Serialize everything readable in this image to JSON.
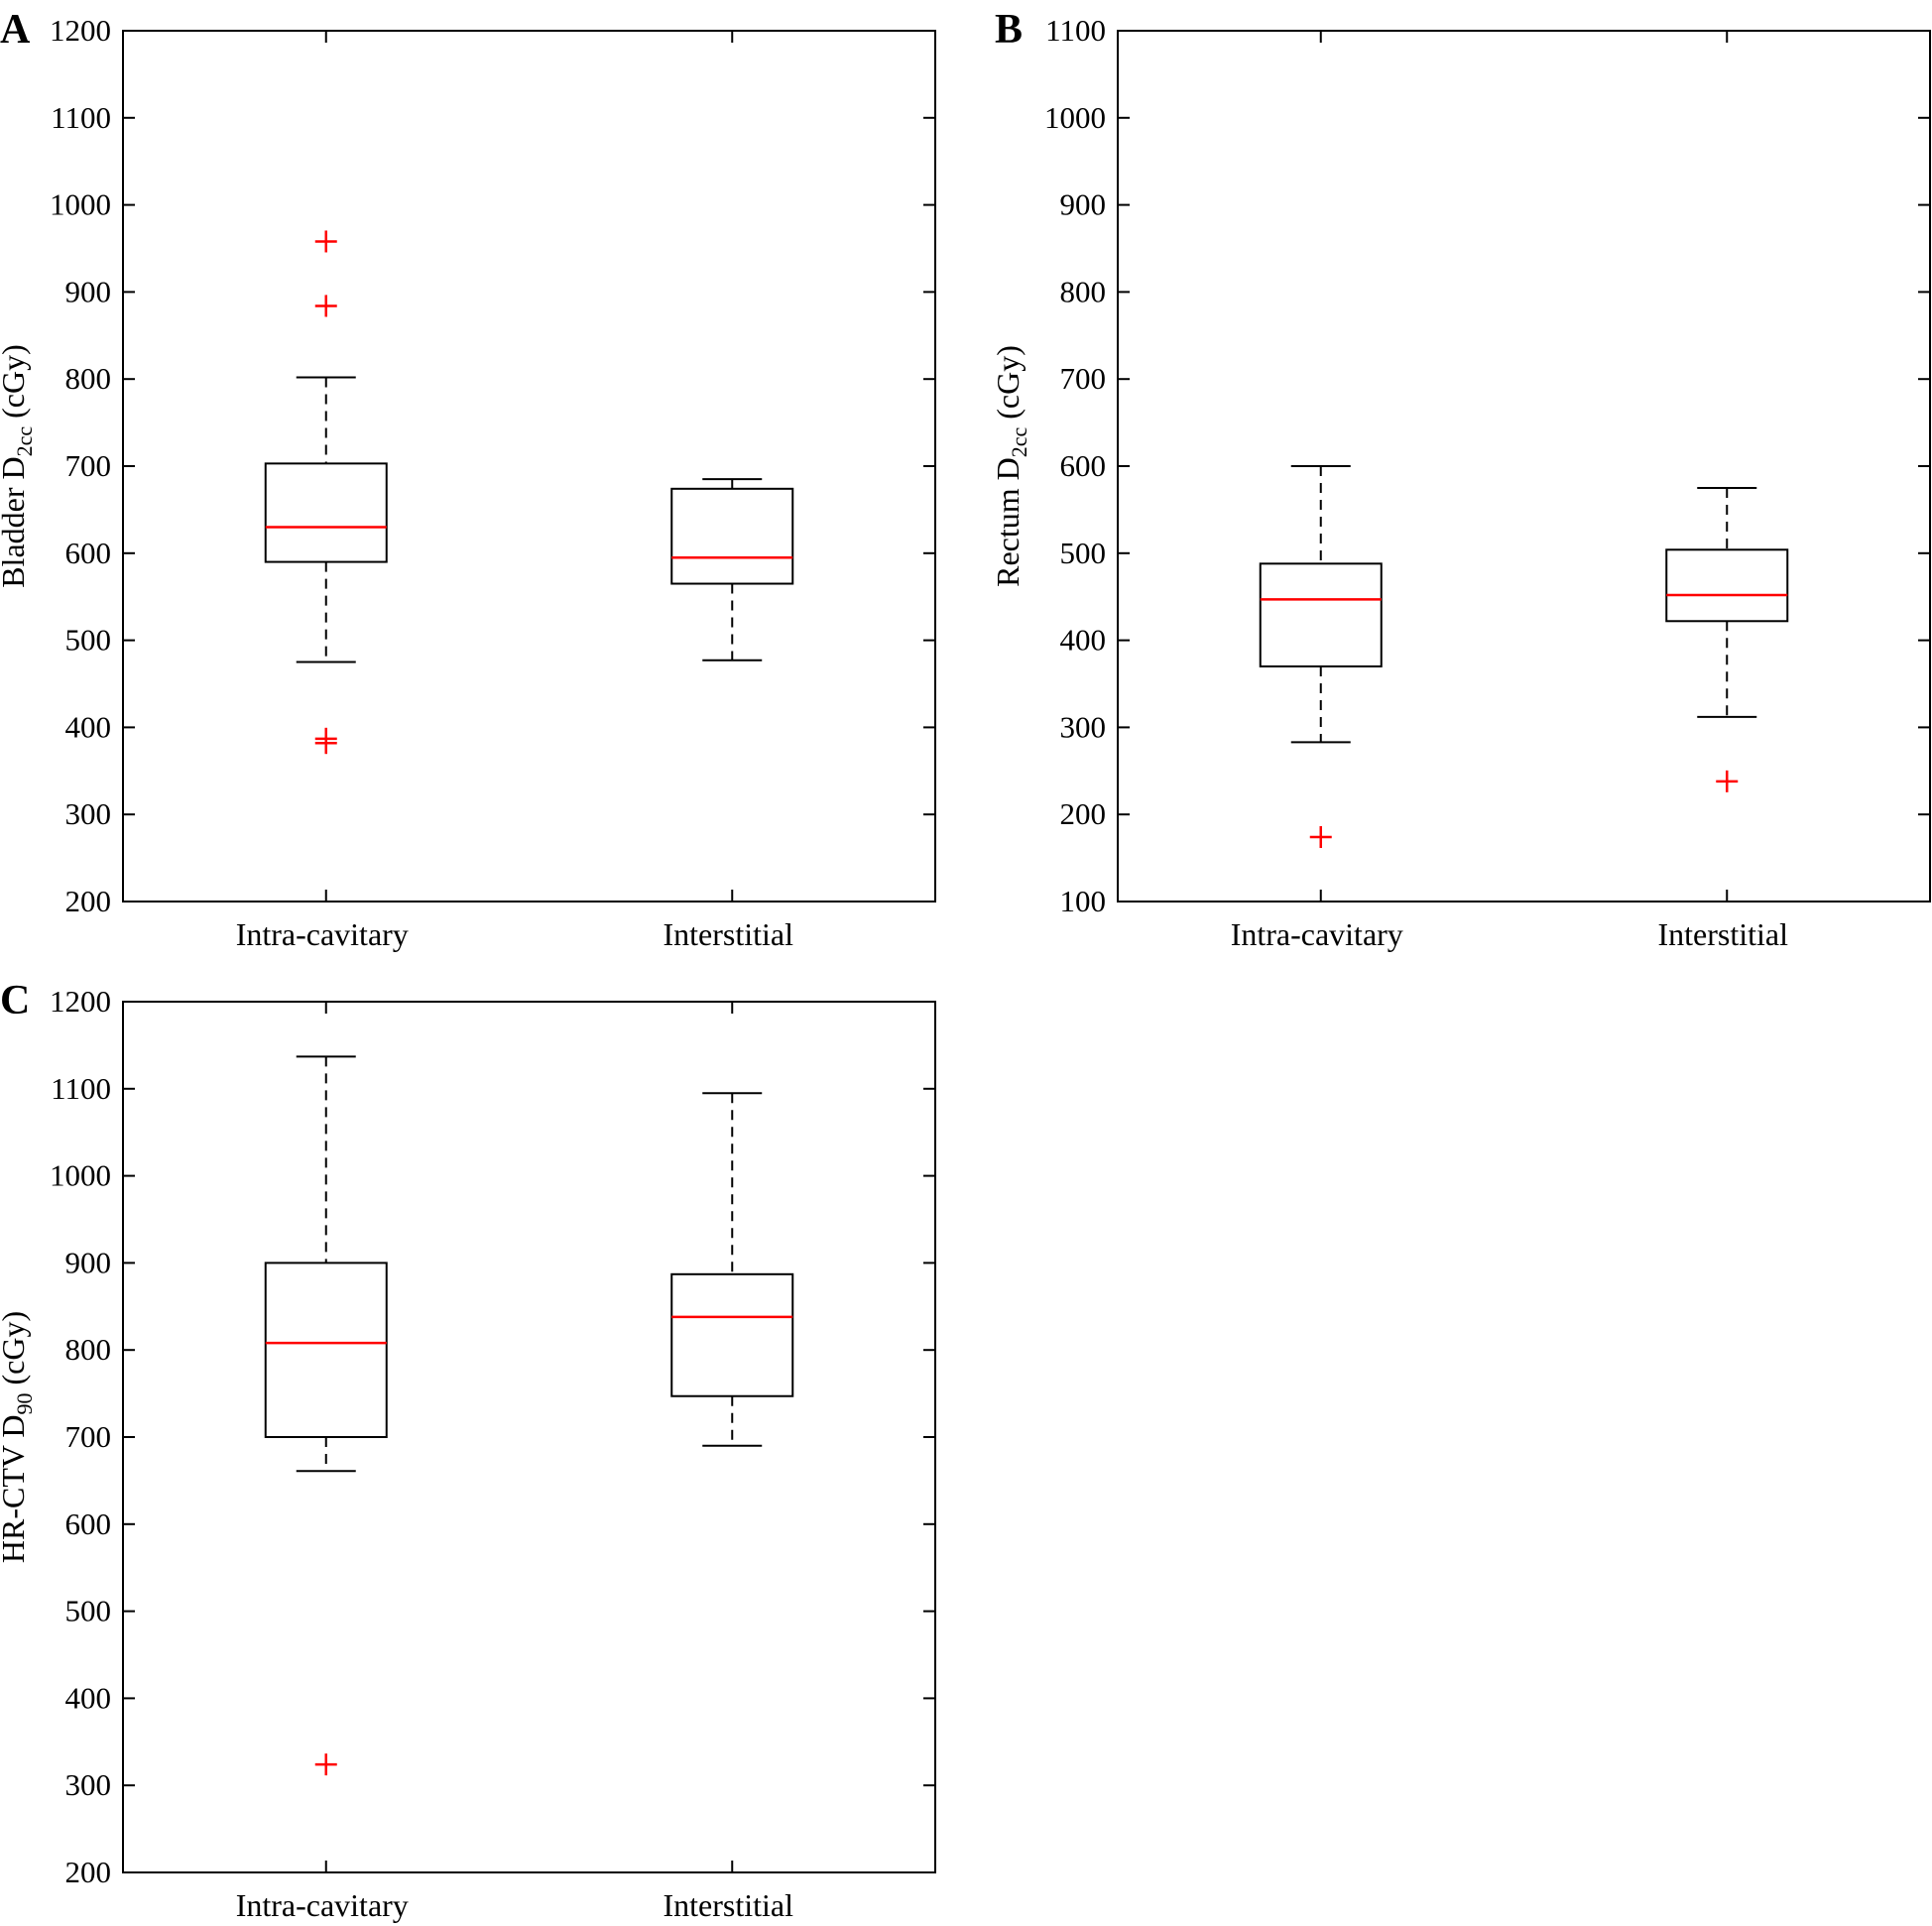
{
  "chart_data": [
    {
      "type": "box",
      "panel_label": "A",
      "ylabel": {
        "main": "Bladder D",
        "sub": "2cc",
        "unit": " (cGy)"
      },
      "ylim": [
        200,
        1200
      ],
      "yticks": [
        200,
        300,
        400,
        500,
        600,
        700,
        800,
        900,
        1000,
        1100,
        1200
      ],
      "categories": [
        "Intra-cavitary",
        "Interstitial"
      ],
      "boxes": [
        {
          "whisker_low": 475,
          "q1": 590,
          "median": 630,
          "q3": 703,
          "whisker_high": 802,
          "outliers": [
            958,
            884,
            387,
            382
          ]
        },
        {
          "whisker_low": 477,
          "q1": 565,
          "median": 595,
          "q3": 674,
          "whisker_high": 685,
          "outliers": []
        }
      ]
    },
    {
      "type": "box",
      "panel_label": "B",
      "ylabel": {
        "main": "Rectum D",
        "sub": "2cc",
        "unit": " (cGy)"
      },
      "ylim": [
        100,
        1100
      ],
      "yticks": [
        100,
        200,
        300,
        400,
        500,
        600,
        700,
        800,
        900,
        1000,
        1100
      ],
      "categories": [
        "Intra-cavitary",
        "Interstitial"
      ],
      "boxes": [
        {
          "whisker_low": 283,
          "q1": 370,
          "median": 447,
          "q3": 488,
          "whisker_high": 600,
          "outliers": [
            174
          ]
        },
        {
          "whisker_low": 312,
          "q1": 422,
          "median": 452,
          "q3": 504,
          "whisker_high": 575,
          "outliers": [
            238
          ]
        }
      ]
    },
    {
      "type": "box",
      "panel_label": "C",
      "ylabel": {
        "main": "HR-CTV D",
        "sub": "90",
        "unit": " (cGy)"
      },
      "ylim": [
        200,
        1200
      ],
      "yticks": [
        200,
        300,
        400,
        500,
        600,
        700,
        800,
        900,
        1000,
        1100,
        1200
      ],
      "categories": [
        "Intra-cavitary",
        "Interstitial"
      ],
      "boxes": [
        {
          "whisker_low": 661,
          "q1": 700,
          "median": 808,
          "q3": 900,
          "whisker_high": 1137,
          "outliers": [
            324
          ]
        },
        {
          "whisker_low": 690,
          "q1": 747,
          "median": 838,
          "q3": 887,
          "whisker_high": 1095,
          "outliers": []
        }
      ]
    }
  ],
  "colors": {
    "median": "#ff0000",
    "outlier": "#ff0000",
    "box": "#000000"
  }
}
